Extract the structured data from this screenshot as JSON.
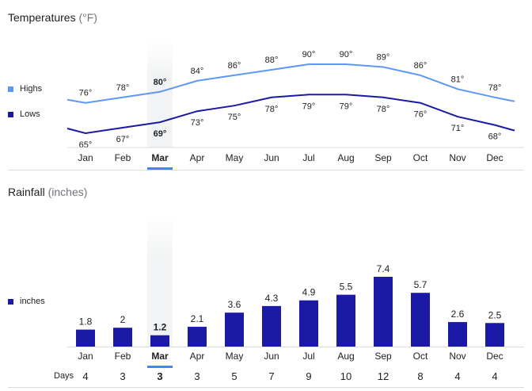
{
  "temperature": {
    "title": "Temperatures",
    "unit": "(°F)",
    "legend_highs": "Highs",
    "legend_lows": "Lows",
    "color_highs": "#5e97f6",
    "color_lows": "#1a1aa6",
    "selected_month": "Mar"
  },
  "rainfall": {
    "title": "Rainfall",
    "unit": "(inches)",
    "legend": "inches",
    "color": "#1a1aa6",
    "days_label": "Days"
  },
  "chart_data": [
    {
      "type": "line",
      "title": "Temperatures (°F)",
      "categories": [
        "Jan",
        "Feb",
        "Mar",
        "Apr",
        "May",
        "Jun",
        "Jul",
        "Aug",
        "Sep",
        "Oct",
        "Nov",
        "Dec"
      ],
      "series": [
        {
          "name": "Highs",
          "values": [
            76,
            78,
            80,
            84,
            86,
            88,
            90,
            90,
            89,
            86,
            81,
            78
          ],
          "labels": [
            "76°",
            "78°",
            "80°",
            "84°",
            "86°",
            "88°",
            "90°",
            "90°",
            "89°",
            "86°",
            "81°",
            "78°"
          ]
        },
        {
          "name": "Lows",
          "values": [
            65,
            67,
            69,
            73,
            75,
            78,
            79,
            79,
            78,
            76,
            71,
            68
          ],
          "labels": [
            "65°",
            "67°",
            "69°",
            "73°",
            "75°",
            "78°",
            "79°",
            "79°",
            "78°",
            "76°",
            "71°",
            "68°"
          ]
        }
      ],
      "ylim": [
        60,
        95
      ]
    },
    {
      "type": "bar",
      "title": "Rainfall (inches)",
      "categories": [
        "Jan",
        "Feb",
        "Mar",
        "Apr",
        "May",
        "Jun",
        "Jul",
        "Aug",
        "Sep",
        "Oct",
        "Nov",
        "Dec"
      ],
      "values": [
        1.8,
        2,
        1.2,
        2.1,
        3.6,
        4.3,
        4.9,
        5.5,
        7.4,
        5.7,
        2.6,
        2.5
      ],
      "labels": [
        "1.8",
        "2",
        "1.2",
        "2.1",
        "3.6",
        "4.3",
        "4.9",
        "5.5",
        "7.4",
        "5.7",
        "2.6",
        "2.5"
      ],
      "days": [
        4,
        3,
        3,
        3,
        5,
        7,
        9,
        10,
        12,
        8,
        4,
        4
      ],
      "ylim": [
        0,
        7.4
      ]
    }
  ]
}
